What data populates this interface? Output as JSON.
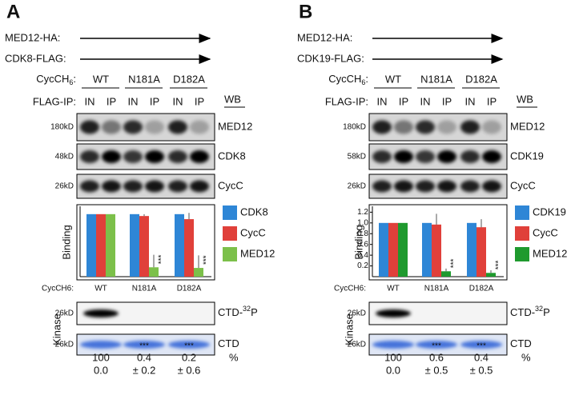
{
  "panels": [
    {
      "letter": "A",
      "constructs": [
        "MED12-HA:",
        "CDK8-FLAG:"
      ],
      "cycc_label": [
        "CycCH",
        "6",
        ":"
      ],
      "variants": [
        "WT",
        "N181A",
        "D182A"
      ],
      "flag_ip_label": "FLAG-IP:",
      "lanes": [
        "IN",
        "IP",
        "IN",
        "IP",
        "IN",
        "IP"
      ],
      "wb": "WB",
      "blots": [
        {
          "marker": "180kD",
          "protein": "MED12"
        },
        {
          "marker": "48kD",
          "protein": "CDK8"
        },
        {
          "marker": "26kD",
          "protein": "CycC"
        }
      ],
      "chart": {
        "type": "bar",
        "y_label": "Binding",
        "x_label": "CycCH6:",
        "categories": [
          "WT",
          "N181A",
          "D182A"
        ],
        "series": [
          {
            "name": "CDK8",
            "color": "#2e86d6",
            "values": [
              1,
              1,
              1
            ],
            "errors": [
              0,
              0,
              0
            ]
          },
          {
            "name": "CycC",
            "color": "#e0403a",
            "values": [
              1,
              0.97,
              0.92
            ],
            "errors": [
              0,
              0.03,
              0.1
            ]
          },
          {
            "name": "MED12",
            "color": "#7cc04a",
            "values": [
              1,
              0.15,
              0.14
            ],
            "errors": [
              0,
              0.2,
              0.2
            ]
          }
        ],
        "significance": [
          null,
          "***",
          "***"
        ],
        "ylim": [
          0,
          1.1
        ]
      },
      "kinase_label": "Kinase",
      "kinase_blots": [
        {
          "marker": "26kD",
          "label": [
            "CTD-",
            "32",
            "P"
          ]
        },
        {
          "marker": "26kD",
          "label": [
            "CTD"
          ]
        }
      ],
      "quant": {
        "unit": "%",
        "significance": [
          null,
          "***",
          "***"
        ],
        "means": [
          "100",
          "0.4",
          "0.2"
        ],
        "sds": [
          "0.0",
          "± 0.2",
          "± 0.6"
        ]
      }
    },
    {
      "letter": "B",
      "constructs": [
        "MED12-HA:",
        "CDK19-FLAG:"
      ],
      "cycc_label": [
        "CycCH",
        "6",
        ":"
      ],
      "variants": [
        "WT",
        "N181A",
        "D182A"
      ],
      "flag_ip_label": "FLAG-IP:",
      "lanes": [
        "IN",
        "IP",
        "IN",
        "IP",
        "IN",
        "IP"
      ],
      "wb": "WB",
      "blots": [
        {
          "marker": "180kD",
          "protein": "MED12"
        },
        {
          "marker": "58kD",
          "protein": "CDK19"
        },
        {
          "marker": "26kD",
          "protein": "CycC"
        }
      ],
      "chart": {
        "type": "bar",
        "y_label": "Binding",
        "x_label": "CycCH6:",
        "categories": [
          "WT",
          "N181A",
          "D182A"
        ],
        "series": [
          {
            "name": "CDK19",
            "color": "#2e86d6",
            "values": [
              1,
              1,
              1
            ],
            "errors": [
              0,
              0,
              0
            ]
          },
          {
            "name": "CycC",
            "color": "#e0403a",
            "values": [
              1,
              0.97,
              0.92
            ],
            "errors": [
              0,
              0.2,
              0.15
            ]
          },
          {
            "name": "MED12",
            "color": "#1f9a2e",
            "values": [
              1,
              0.1,
              0.07
            ],
            "errors": [
              0,
              0.05,
              0.05
            ]
          }
        ],
        "significance": [
          null,
          "***",
          "***"
        ],
        "ylim": [
          0,
          1.28
        ],
        "yticks": [
          0.2,
          0.4,
          0.6,
          0.8,
          {
            "value": 1,
            "label": "1.0"
          },
          1.2
        ]
      },
      "kinase_label": "Kinase",
      "kinase_blots": [
        {
          "marker": "26kD",
          "label": [
            "CTD-",
            "32",
            "P"
          ]
        },
        {
          "marker": "26kD",
          "label": [
            "CTD"
          ]
        }
      ],
      "quant": {
        "unit": "%",
        "significance": [
          null,
          "***",
          "***"
        ],
        "means": [
          "100",
          "0.6",
          "0.4"
        ],
        "sds": [
          "0.0",
          "± 0.5",
          "± 0.5"
        ]
      }
    }
  ]
}
